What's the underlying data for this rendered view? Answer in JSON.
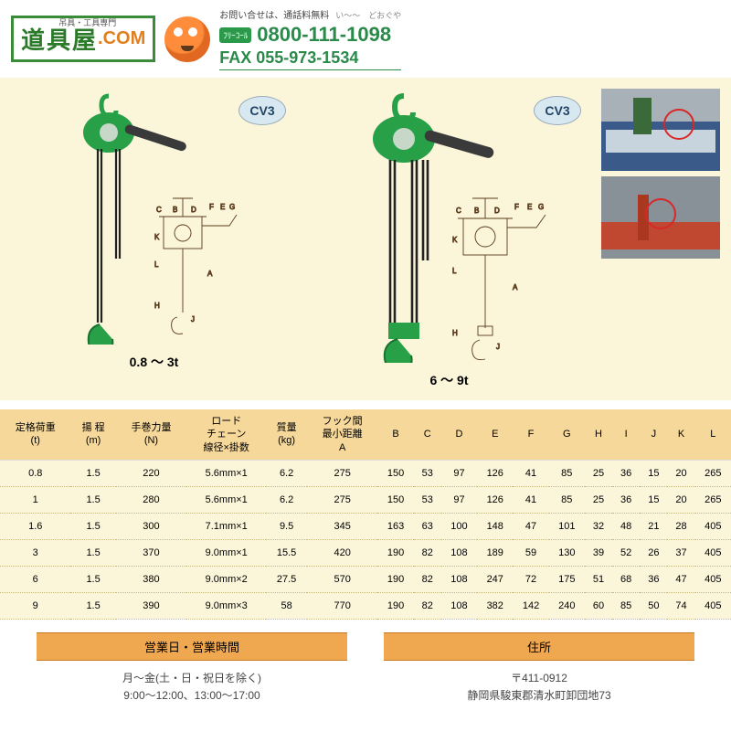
{
  "header": {
    "logo_main": "道具屋",
    "logo_sub": ".COM",
    "tagline": "吊具・工具専門",
    "contact_label": "お問い合せは、通話料無料",
    "furigana": "い～～　どおぐや",
    "freecall": "ﾌﾘｰｺｰﾙ",
    "tel": "0800-111-1098",
    "fax": "FAX 055-973-1534"
  },
  "product": {
    "badge": "CV3",
    "range1": "0.8 ～ 3t",
    "range2": "6 ～ 9t"
  },
  "table": {
    "headers": [
      "定格荷重\n(t)",
      "揚 程\n(m)",
      "手巻力量\n(N)",
      "ロード\nチェーン\n線径×掛数",
      "質量\n(kg)",
      "フック間\n最小距離\nA",
      "B",
      "C",
      "D",
      "E",
      "F",
      "G",
      "H",
      "I",
      "J",
      "K",
      "L"
    ],
    "rows": [
      [
        "0.8",
        "1.5",
        "220",
        "5.6mm×1",
        "6.2",
        "275",
        "150",
        "53",
        "97",
        "126",
        "41",
        "85",
        "25",
        "36",
        "15",
        "20",
        "265"
      ],
      [
        "1",
        "1.5",
        "280",
        "5.6mm×1",
        "6.2",
        "275",
        "150",
        "53",
        "97",
        "126",
        "41",
        "85",
        "25",
        "36",
        "15",
        "20",
        "265"
      ],
      [
        "1.6",
        "1.5",
        "300",
        "7.1mm×1",
        "9.5",
        "345",
        "163",
        "63",
        "100",
        "148",
        "47",
        "101",
        "32",
        "48",
        "21",
        "28",
        "405"
      ],
      [
        "3",
        "1.5",
        "370",
        "9.0mm×1",
        "15.5",
        "420",
        "190",
        "82",
        "108",
        "189",
        "59",
        "130",
        "39",
        "52",
        "26",
        "37",
        "405"
      ],
      [
        "6",
        "1.5",
        "380",
        "9.0mm×2",
        "27.5",
        "570",
        "190",
        "82",
        "108",
        "247",
        "72",
        "175",
        "51",
        "68",
        "36",
        "47",
        "405"
      ],
      [
        "9",
        "1.5",
        "390",
        "9.0mm×3",
        "58",
        "770",
        "190",
        "82",
        "108",
        "382",
        "142",
        "240",
        "60",
        "85",
        "50",
        "74",
        "405"
      ]
    ]
  },
  "footer": {
    "hours_head": "営業日・営業時間",
    "hours_body1": "月～金(土・日・祝日を除く)",
    "hours_body2": "9:00～12:00、13:00～17:00",
    "addr_head": "住所",
    "addr_body1": "〒411-0912",
    "addr_body2": "静岡県駿東郡清水町卸団地73"
  },
  "colors": {
    "green": "#2a9a4a",
    "orange": "#f0a850",
    "cream": "#fbf5da",
    "header_cream": "#f5d89a"
  }
}
